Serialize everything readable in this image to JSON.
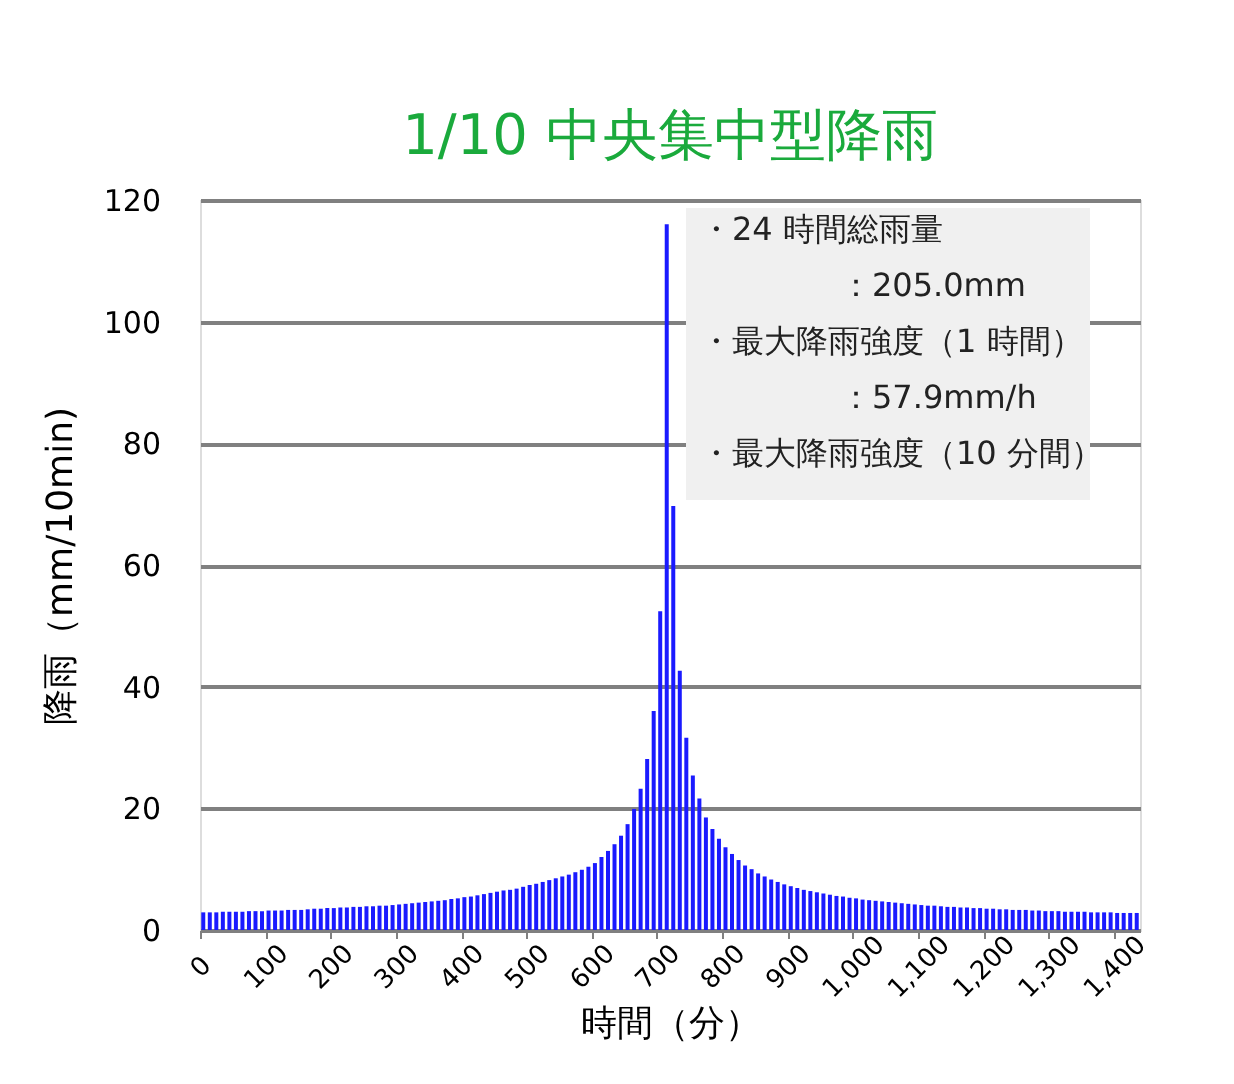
{
  "chart_data": {
    "type": "bar",
    "title": "1/10 中央集中型降雨",
    "xlabel": "時間（分）",
    "ylabel": "降雨（mm/10min)",
    "x": [
      5,
      15,
      25,
      35,
      45,
      55,
      65,
      75,
      85,
      95,
      105,
      115,
      125,
      135,
      145,
      155,
      165,
      175,
      185,
      195,
      205,
      215,
      225,
      235,
      245,
      255,
      265,
      275,
      285,
      295,
      305,
      315,
      325,
      335,
      345,
      355,
      365,
      375,
      385,
      395,
      405,
      415,
      425,
      435,
      445,
      455,
      465,
      475,
      485,
      495,
      505,
      515,
      525,
      535,
      545,
      555,
      565,
      575,
      585,
      595,
      605,
      615,
      625,
      635,
      645,
      655,
      665,
      675,
      685,
      695,
      705,
      715,
      725,
      735,
      745,
      755,
      765,
      775,
      785,
      795,
      805,
      815,
      825,
      835,
      845,
      855,
      865,
      875,
      885,
      895,
      905,
      915,
      925,
      935,
      945,
      955,
      965,
      975,
      985,
      995,
      1005,
      1015,
      1025,
      1035,
      1045,
      1055,
      1065,
      1075,
      1085,
      1095,
      1105,
      1115,
      1125,
      1135,
      1145,
      1155,
      1165,
      1175,
      1185,
      1195,
      1205,
      1215,
      1225,
      1235,
      1245,
      1255,
      1265,
      1275,
      1285,
      1295,
      1305,
      1315,
      1325,
      1335,
      1345,
      1355,
      1365,
      1375,
      1385,
      1395,
      1405,
      1415,
      1425,
      1435
    ],
    "values": [
      2.9,
      2.9,
      2.9,
      3.0,
      3.0,
      3.0,
      3.0,
      3.1,
      3.1,
      3.1,
      3.2,
      3.2,
      3.2,
      3.3,
      3.3,
      3.3,
      3.4,
      3.5,
      3.5,
      3.6,
      3.6,
      3.7,
      3.7,
      3.8,
      3.8,
      3.9,
      3.9,
      4.0,
      4.0,
      4.1,
      4.2,
      4.3,
      4.4,
      4.5,
      4.6,
      4.7,
      4.8,
      4.9,
      5.1,
      5.2,
      5.4,
      5.5,
      5.7,
      5.9,
      6.1,
      6.3,
      6.5,
      6.6,
      6.8,
      7.1,
      7.4,
      7.6,
      7.9,
      8.2,
      8.5,
      8.8,
      9.1,
      9.5,
      9.9,
      10.4,
      11.0,
      12.0,
      13.0,
      14.1,
      15.5,
      17.4,
      19.9,
      23.2,
      28.1,
      36.0,
      52.4,
      116,
      69.7,
      42.6,
      31.6,
      25.4,
      21.6,
      18.5,
      16.6,
      15.0,
      13.6,
      12.5,
      11.5,
      10.6,
      10.0,
      9.3,
      8.8,
      8.3,
      7.9,
      7.5,
      7.2,
      6.9,
      6.6,
      6.4,
      6.2,
      6.0,
      5.8,
      5.6,
      5.5,
      5.3,
      5.2,
      5.0,
      4.9,
      4.8,
      4.7,
      4.6,
      4.5,
      4.4,
      4.3,
      4.2,
      4.1,
      4.0,
      4.0,
      3.9,
      3.8,
      3.8,
      3.7,
      3.7,
      3.6,
      3.6,
      3.5,
      3.5,
      3.4,
      3.4,
      3.3,
      3.3,
      3.3,
      3.2,
      3.2,
      3.1,
      3.1,
      3.1,
      3.0,
      3.0,
      3.0,
      3.0,
      2.9,
      2.9,
      2.9,
      2.9,
      2.8,
      2.8,
      2.8,
      2.8
    ],
    "color": "#1a1aff",
    "xlim": [
      0,
      1440
    ],
    "xticks": [
      0,
      100,
      200,
      300,
      400,
      500,
      600,
      700,
      800,
      900,
      {
        "value": 1000,
        "label": "1,000"
      },
      {
        "value": 1100,
        "label": "1,100"
      },
      {
        "value": 1200,
        "label": "1,200"
      },
      {
        "value": 1300,
        "label": "1,300"
      },
      {
        "value": 1400,
        "label": "1,400"
      }
    ],
    "ylim": [
      0,
      120
    ],
    "yticks": [
      0,
      20,
      40,
      60,
      80,
      100,
      120
    ],
    "grid": "y",
    "annotations": [
      "・24 時間総雨量",
      "：205.0mm",
      "・最大降雨強度（1 時間）",
      "：57.9mm/h",
      "・最大降雨強度（10 分間）"
    ]
  }
}
